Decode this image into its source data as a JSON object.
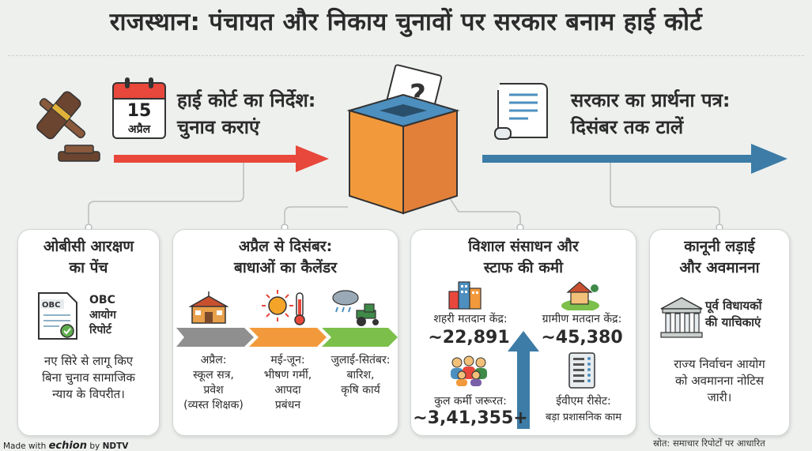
{
  "title": "राजस्थान: पंचायत और निकाय चुनावों पर सरकार बनाम हाई कोर्ट",
  "calendar": {
    "day": "15",
    "month": "अप्रैल"
  },
  "high_court": {
    "line1": "हाई कोर्ट का निर्देश:",
    "line2": "चुनाव कराएं"
  },
  "government": {
    "line1": "सरकार का प्रार्थना पत्र:",
    "line2": "दिसंबर तक टालें"
  },
  "ballot_mark": "?",
  "colors": {
    "red": "#e8473b",
    "blue": "#3c7ca6",
    "orange": "#f29a3b",
    "green": "#7cbf4a",
    "grey": "#8f8f8f"
  },
  "cards": {
    "obc": {
      "title1": "ओबीसी आरक्षण",
      "title2": "का पेंच",
      "doc_label": "OBC",
      "report1": "OBC",
      "report2": "आयोग",
      "report3": "रिपोर्ट",
      "desc1": "नए सिरे से लागू किए",
      "desc2": "बिना चुनाव सामाजिक",
      "desc3": "न्याय के विपरीत।"
    },
    "calendar": {
      "title1": "अप्रैल से दिसंबर:",
      "title2": "बाधाओं का कैलेंडर",
      "p1": {
        "head": "अप्रैल:",
        "l2": "स्कूल सत्र,",
        "l3": "प्रवेश",
        "l4": "(व्यस्त शिक्षक)"
      },
      "p2": {
        "head": "मई-जून:",
        "l2": "भीषण गर्मी,",
        "l3": "आपदा",
        "l4": "प्रबंधन"
      },
      "p3": {
        "head": "जुलाई-सितंबर:",
        "l2": "बारिश,",
        "l3": "कृषि कार्य"
      }
    },
    "resources": {
      "title1": "विशाल संसाधन और",
      "title2": "स्टाफ की कमी",
      "urban_label": "शहरी मतदान केंद्र:",
      "urban_value": "~22,891",
      "rural_label": "ग्रामीण मतदान केंद्र:",
      "rural_value": "~45,380",
      "staff_label": "कुल कर्मी जरूरत:",
      "staff_value": "~3,41,355+",
      "evm_label": "ईवीएम रीसेट:",
      "evm_value": "बड़ा प्रशासनिक काम"
    },
    "legal": {
      "title1": "कानूनी लड़ाई",
      "title2": "और अवमानना",
      "petition1": "पूर्व विधायकों",
      "petition2": "की याचिकाएं",
      "desc1": "राज्य निर्वाचन आयोग",
      "desc2": "को अवमानना नोटिस",
      "desc3": "जारी।"
    }
  },
  "footer": {
    "made_with": "Made with",
    "brand": "echion",
    "by": "by",
    "ndtv": "NDTV",
    "source": "स्रोत: समाचार रिपोर्टों पर आधारित"
  }
}
